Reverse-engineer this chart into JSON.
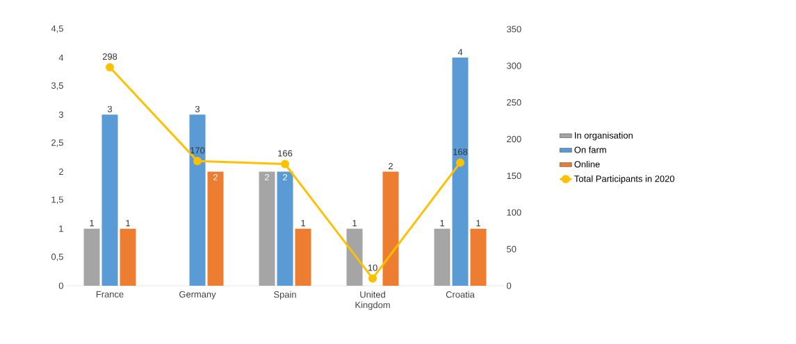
{
  "chart_data": {
    "type": "bar",
    "categories": [
      "France",
      "Germany",
      "Spain",
      "United Kingdom",
      "Croatia"
    ],
    "series": [
      {
        "name": "In organisation",
        "color": "#a5a5a5",
        "values": [
          1,
          null,
          2,
          1,
          1
        ]
      },
      {
        "name": "On farm",
        "color": "#5b9bd5",
        "values": [
          3,
          3,
          2,
          null,
          4
        ]
      },
      {
        "name": "Online",
        "color": "#ed7d31",
        "values": [
          1,
          2,
          1,
          2,
          1
        ]
      },
      {
        "name": "Total Participants in 2020",
        "type": "line",
        "axis": "y2",
        "color": "#ffc000",
        "marker": "circle",
        "values": [
          298,
          170,
          166,
          10,
          168
        ]
      }
    ],
    "ylim": [
      0,
      4.5
    ],
    "yticks": [
      0,
      {
        "value": 0.5,
        "label": "0,5"
      },
      1,
      {
        "value": 1.5,
        "label": "1,5"
      },
      2,
      {
        "value": 2.5,
        "label": "2,5"
      },
      3,
      {
        "value": 3.5,
        "label": "3,5"
      },
      4,
      {
        "value": 4.5,
        "label": "4,5"
      }
    ],
    "y2lim": [
      0,
      350
    ],
    "y2ticks": [
      0,
      50,
      100,
      150,
      200,
      250,
      300,
      350
    ],
    "data_labels": true,
    "legend": "right"
  }
}
